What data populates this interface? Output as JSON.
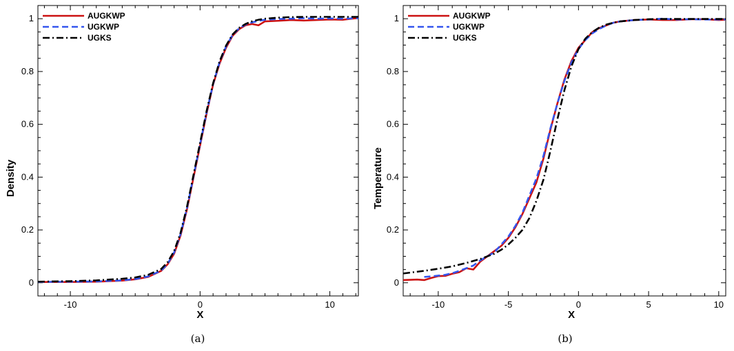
{
  "chart_data": [
    {
      "type": "line",
      "caption": "(a)",
      "xlabel": "X",
      "ylabel": "Density",
      "xlim": [
        -12.5,
        12.2
      ],
      "ylim": [
        -0.05,
        1.05
      ],
      "xticks": [
        -10,
        0,
        10
      ],
      "yticks": [
        0,
        0.2,
        0.4,
        0.6,
        0.8,
        1
      ],
      "legend_position": "top-left",
      "grid": false,
      "series": [
        {
          "name": "AUGKWP",
          "color": "#cc1111",
          "style": "solid",
          "x": [
            -12.5,
            -10,
            -8,
            -6,
            -5,
            -4,
            -3,
            -2.5,
            -2,
            -1.5,
            -1,
            -0.5,
            0,
            0.5,
            1,
            1.5,
            2,
            2.5,
            3,
            3.5,
            4,
            4.5,
            5,
            6,
            7,
            8,
            9,
            10,
            11,
            12.2
          ],
          "y": [
            0.003,
            0.003,
            0.004,
            0.008,
            0.013,
            0.022,
            0.045,
            0.07,
            0.11,
            0.18,
            0.28,
            0.4,
            0.52,
            0.64,
            0.75,
            0.83,
            0.89,
            0.935,
            0.96,
            0.975,
            0.98,
            0.975,
            0.99,
            0.992,
            0.995,
            0.993,
            0.995,
            0.997,
            0.996,
            1.003
          ]
        },
        {
          "name": "UGKWP",
          "color": "#3355ee",
          "style": "dashed",
          "x": [
            -12.5,
            -10,
            -8,
            -6,
            -5,
            -4,
            -3,
            -2.5,
            -2,
            -1.5,
            -1,
            -0.5,
            0,
            0.5,
            1,
            1.5,
            2,
            2.5,
            3,
            3.5,
            4,
            4.5,
            5,
            6,
            7,
            8,
            9,
            10,
            11,
            12.2
          ],
          "y": [
            0.003,
            0.004,
            0.005,
            0.009,
            0.014,
            0.024,
            0.046,
            0.072,
            0.115,
            0.185,
            0.285,
            0.405,
            0.525,
            0.645,
            0.752,
            0.835,
            0.895,
            0.938,
            0.963,
            0.978,
            0.986,
            0.992,
            0.996,
            0.999,
            1.0,
            1.002,
            1.0,
            1.001,
            1.0,
            1.002
          ]
        },
        {
          "name": "UGKS",
          "color": "#000000",
          "style": "dashdot",
          "x": [
            -12.5,
            -10,
            -8,
            -6,
            -5,
            -4,
            -3,
            -2.5,
            -2,
            -1.5,
            -1,
            -0.5,
            0,
            0.5,
            1,
            1.5,
            2,
            2.5,
            3,
            3.5,
            4,
            4.5,
            5,
            6,
            7,
            8,
            9,
            10,
            11,
            12.2
          ],
          "y": [
            0.004,
            0.006,
            0.009,
            0.015,
            0.02,
            0.03,
            0.052,
            0.078,
            0.12,
            0.19,
            0.29,
            0.41,
            0.53,
            0.65,
            0.755,
            0.838,
            0.898,
            0.94,
            0.965,
            0.98,
            0.99,
            0.996,
            1.0,
            1.004,
            1.006,
            1.007,
            1.007,
            1.007,
            1.007,
            1.007
          ]
        }
      ]
    },
    {
      "type": "line",
      "caption": "(b)",
      "xlabel": "X",
      "ylabel": "Temperature",
      "xlim": [
        -12.5,
        10.5
      ],
      "ylim": [
        -0.05,
        1.05
      ],
      "xticks": [
        -10,
        -5,
        0,
        5,
        10
      ],
      "yticks": [
        0,
        0.2,
        0.4,
        0.6,
        0.8,
        1
      ],
      "legend_position": "top-left",
      "grid": false,
      "series": [
        {
          "name": "AUGKWP",
          "color": "#cc1111",
          "style": "solid",
          "x": [
            -12.5,
            -11.5,
            -11,
            -10.5,
            -10,
            -9.5,
            -9,
            -8.5,
            -8,
            -7.5,
            -7,
            -6.5,
            -6,
            -5.5,
            -5,
            -4.5,
            -4,
            -3.5,
            -3,
            -2.5,
            -2,
            -1.5,
            -1,
            -0.5,
            0,
            0.5,
            1,
            1.5,
            2,
            2.5,
            3,
            4,
            5,
            6,
            7,
            8,
            9,
            10,
            10.5
          ],
          "y": [
            0.01,
            0.012,
            0.01,
            0.018,
            0.025,
            0.026,
            0.034,
            0.04,
            0.055,
            0.05,
            0.08,
            0.1,
            0.12,
            0.14,
            0.17,
            0.21,
            0.26,
            0.32,
            0.38,
            0.47,
            0.58,
            0.68,
            0.77,
            0.84,
            0.89,
            0.92,
            0.95,
            0.965,
            0.975,
            0.985,
            0.99,
            0.995,
            0.997,
            0.995,
            0.995,
            0.998,
            0.998,
            0.995,
            0.996
          ]
        },
        {
          "name": "UGKWP",
          "color": "#3355ee",
          "style": "dashed",
          "x": [
            -11,
            -10.5,
            -10,
            -9.5,
            -9,
            -8.5,
            -8,
            -7.5,
            -7,
            -6.5,
            -6,
            -5.5,
            -5,
            -4.5,
            -4,
            -3.5,
            -3,
            -2.5,
            -2,
            -1.5,
            -1,
            -0.5,
            0,
            0.5,
            1,
            1.5,
            2,
            2.5,
            3,
            4,
            5,
            6,
            7,
            8,
            9,
            10,
            10.5
          ],
          "y": [
            0.022,
            0.024,
            0.027,
            0.03,
            0.036,
            0.045,
            0.055,
            0.065,
            0.085,
            0.1,
            0.115,
            0.145,
            0.175,
            0.215,
            0.265,
            0.33,
            0.395,
            0.48,
            0.585,
            0.68,
            0.765,
            0.835,
            0.885,
            0.92,
            0.945,
            0.962,
            0.975,
            0.985,
            0.99,
            0.995,
            0.997,
            1.0,
            0.997,
            0.998,
            0.997,
            0.997,
            0.997
          ]
        },
        {
          "name": "UGKS",
          "color": "#000000",
          "style": "dashdot",
          "x": [
            -12.5,
            -11,
            -10,
            -9,
            -8,
            -7,
            -6,
            -5.5,
            -5,
            -4.5,
            -4,
            -3.5,
            -3,
            -2.5,
            -2,
            -1.5,
            -1,
            -0.5,
            0,
            0.5,
            1,
            1.5,
            2,
            2.5,
            3,
            4,
            5,
            6,
            7,
            8,
            9,
            10,
            10.5
          ],
          "y": [
            0.035,
            0.045,
            0.053,
            0.062,
            0.075,
            0.09,
            0.11,
            0.125,
            0.145,
            0.17,
            0.2,
            0.245,
            0.31,
            0.39,
            0.5,
            0.62,
            0.73,
            0.82,
            0.885,
            0.925,
            0.95,
            0.967,
            0.978,
            0.985,
            0.99,
            0.995,
            0.998,
            0.999,
            0.999,
            0.999,
            0.999,
            0.999,
            0.999
          ]
        }
      ]
    }
  ]
}
